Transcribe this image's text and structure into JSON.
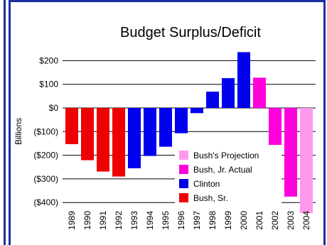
{
  "chart_data": {
    "type": "bar",
    "title": "Budget Surplus/Deficit",
    "ylabel": "Billions",
    "xlabel": "",
    "ylim": [
      -450,
      250
    ],
    "yticks": [
      {
        "value": 200,
        "label": "$200"
      },
      {
        "value": 100,
        "label": "$100"
      },
      {
        "value": 0,
        "label": "$0"
      },
      {
        "value": -100,
        "label": "($100)"
      },
      {
        "value": -200,
        "label": "($200)"
      },
      {
        "value": -300,
        "label": "($300)"
      },
      {
        "value": -400,
        "label": "($400)"
      }
    ],
    "grid": true,
    "legend_position": "bottom-right",
    "bars": [
      {
        "year": "1989",
        "value": -153,
        "series": "Bush, Sr."
      },
      {
        "year": "1990",
        "value": -221,
        "series": "Bush, Sr."
      },
      {
        "year": "1991",
        "value": -269,
        "series": "Bush, Sr."
      },
      {
        "year": "1992",
        "value": -290,
        "series": "Bush, Sr."
      },
      {
        "year": "1993",
        "value": -255,
        "series": "Clinton"
      },
      {
        "year": "1994",
        "value": -203,
        "series": "Clinton"
      },
      {
        "year": "1995",
        "value": -164,
        "series": "Clinton"
      },
      {
        "year": "1996",
        "value": -107,
        "series": "Clinton"
      },
      {
        "year": "1997",
        "value": -22,
        "series": "Clinton"
      },
      {
        "year": "1998",
        "value": 69,
        "series": "Clinton"
      },
      {
        "year": "1999",
        "value": 126,
        "series": "Clinton"
      },
      {
        "year": "2000",
        "value": 236,
        "series": "Clinton"
      },
      {
        "year": "2001",
        "value": 128,
        "series": "Bush, Jr. Actual"
      },
      {
        "year": "2002",
        "value": -158,
        "series": "Bush, Jr. Actual"
      },
      {
        "year": "2003",
        "value": -375,
        "series": "Bush, Jr. Actual"
      },
      {
        "year": "2004",
        "value": -445,
        "series": "Bush's Projection"
      }
    ],
    "legend": [
      {
        "name": "Bush's Projection",
        "color": "#ff99ee"
      },
      {
        "name": "Bush, Jr. Actual",
        "color": "#ff00dd"
      },
      {
        "name": "Clinton",
        "color": "#0000ee"
      },
      {
        "name": "Bush, Sr.",
        "color": "#ee0000"
      }
    ]
  }
}
